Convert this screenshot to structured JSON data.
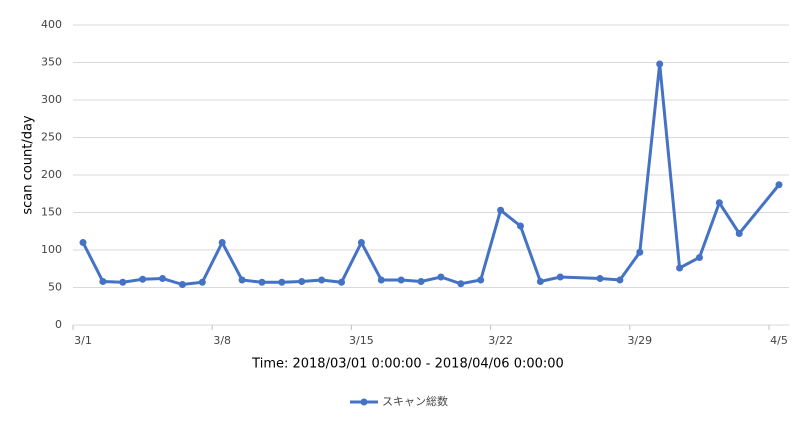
{
  "chart_data": {
    "type": "line",
    "x_label": "Time: 2018/03/01  0:00:00 - 2018/04/06  0:00:00",
    "y_label": "scan count/day",
    "x": [
      "3/1",
      "3/2",
      "3/3",
      "3/4",
      "3/5",
      "3/6",
      "3/7",
      "3/8",
      "3/9",
      "3/10",
      "3/11",
      "3/12",
      "3/13",
      "3/14",
      "3/15",
      "3/16",
      "3/17",
      "3/18",
      "3/19",
      "3/20",
      "3/21",
      "3/22",
      "3/23",
      "3/24",
      "3/25",
      "3/27",
      "3/28",
      "3/29",
      "3/30",
      "3/31",
      "4/1",
      "4/2",
      "4/3",
      "4/5"
    ],
    "series": [
      {
        "name": "スキャン総数",
        "color": "#4472c4",
        "values": [
          110,
          58,
          57,
          61,
          62,
          54,
          57,
          110,
          60,
          57,
          57,
          58,
          60,
          57,
          110,
          60,
          60,
          58,
          64,
          55,
          60,
          153,
          132,
          58,
          64,
          62,
          60,
          97,
          348,
          76,
          90,
          163,
          122,
          187
        ]
      }
    ],
    "xlim": [
      "3/1",
      "4/5"
    ],
    "xticks": [
      "3/1",
      "3/8",
      "3/15",
      "3/22",
      "3/29",
      "4/5"
    ],
    "ylim": [
      0,
      400
    ],
    "yticks": [
      0,
      50,
      100,
      150,
      200,
      250,
      300,
      350,
      400
    ],
    "grid": true,
    "legend": "bottom"
  }
}
